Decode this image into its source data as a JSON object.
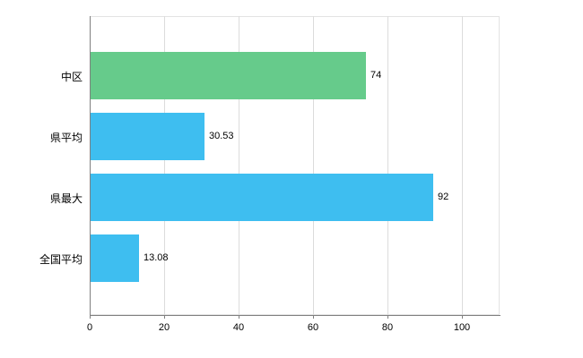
{
  "chart_data": {
    "type": "bar",
    "orientation": "horizontal",
    "title": "",
    "xlabel": "",
    "ylabel": "",
    "categories": [
      "中区",
      "県平均",
      "県最大",
      "全国平均"
    ],
    "values": [
      74,
      30.53,
      92,
      13.08
    ],
    "value_labels": [
      "74",
      "30.53",
      "92",
      "13.08"
    ],
    "bar_colors": [
      "#66cb8b",
      "#3ebef0",
      "#3ebef0",
      "#3ebef0"
    ],
    "x_ticks": [
      "0",
      "20",
      "40",
      "60",
      "80",
      "100"
    ],
    "x_tick_values": [
      0,
      20,
      40,
      60,
      80,
      100
    ],
    "xlim": [
      0,
      110
    ],
    "grid": true,
    "legend": false,
    "colors": {
      "highlight_bar": "#66cb8b",
      "default_bar": "#3ebef0",
      "grid": "#dcdcdc",
      "axis": "#808080",
      "background": "#ffffff",
      "text": "#000000"
    }
  }
}
